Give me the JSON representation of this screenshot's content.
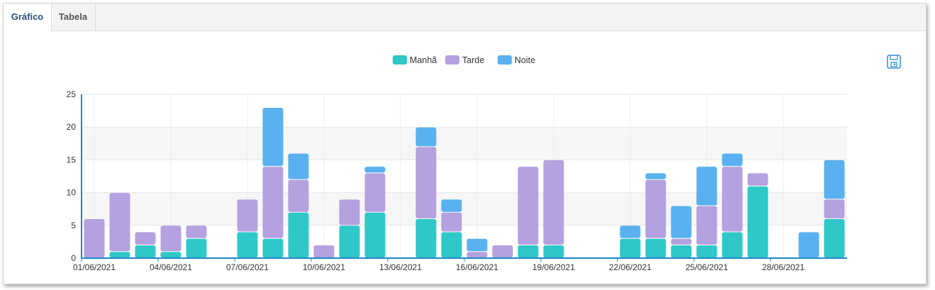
{
  "tabs": [
    {
      "label": "Gráfico",
      "active": true
    },
    {
      "label": "Tabela",
      "active": false
    }
  ],
  "toolbar": {
    "save_icon": "save-icon"
  },
  "colors": {
    "manha": "#2ec8c8",
    "tarde": "#b5a1e0",
    "noite": "#5ab1ef",
    "axis": "#1e88c7"
  },
  "chart_data": {
    "type": "bar",
    "stacked": true,
    "legend_position": "top-center",
    "grid": true,
    "ylim": [
      0,
      25
    ],
    "yticks": [
      0,
      5,
      10,
      15,
      20,
      25
    ],
    "xtick_labels": [
      "01/06/2021",
      "04/06/2021",
      "07/06/2021",
      "10/06/2021",
      "13/06/2021",
      "16/06/2021",
      "19/06/2021",
      "22/06/2021",
      "25/06/2021",
      "28/06/2021"
    ],
    "categories": [
      "01/06/2021",
      "02/06/2021",
      "03/06/2021",
      "04/06/2021",
      "05/06/2021",
      "06/06/2021",
      "07/06/2021",
      "08/06/2021",
      "09/06/2021",
      "10/06/2021",
      "11/06/2021",
      "12/06/2021",
      "13/06/2021",
      "14/06/2021",
      "15/06/2021",
      "16/06/2021",
      "17/06/2021",
      "18/06/2021",
      "19/06/2021",
      "20/06/2021",
      "21/06/2021",
      "22/06/2021",
      "23/06/2021",
      "24/06/2021",
      "25/06/2021",
      "26/06/2021",
      "27/06/2021",
      "28/06/2021",
      "29/06/2021",
      "30/06/2021"
    ],
    "series": [
      {
        "name": "Manhã",
        "color": "#2ec8c8",
        "values": [
          0,
          1,
          2,
          1,
          3,
          0,
          4,
          3,
          7,
          0,
          5,
          7,
          0,
          6,
          4,
          0,
          0,
          2,
          2,
          0,
          0,
          3,
          3,
          2,
          2,
          4,
          11,
          0,
          0,
          6
        ]
      },
      {
        "name": "Tarde",
        "color": "#b5a1e0",
        "values": [
          6,
          9,
          2,
          4,
          2,
          0,
          5,
          11,
          5,
          2,
          4,
          6,
          0,
          11,
          3,
          1,
          2,
          12,
          13,
          0,
          0,
          0,
          9,
          1,
          6,
          10,
          2,
          0,
          0,
          3
        ]
      },
      {
        "name": "Noite",
        "color": "#5ab1ef",
        "values": [
          0,
          0,
          0,
          0,
          0,
          0,
          0,
          9,
          4,
          0,
          0,
          1,
          0,
          3,
          2,
          2,
          0,
          0,
          0,
          0,
          0,
          2,
          1,
          5,
          6,
          2,
          0,
          0,
          4,
          6
        ]
      }
    ]
  }
}
